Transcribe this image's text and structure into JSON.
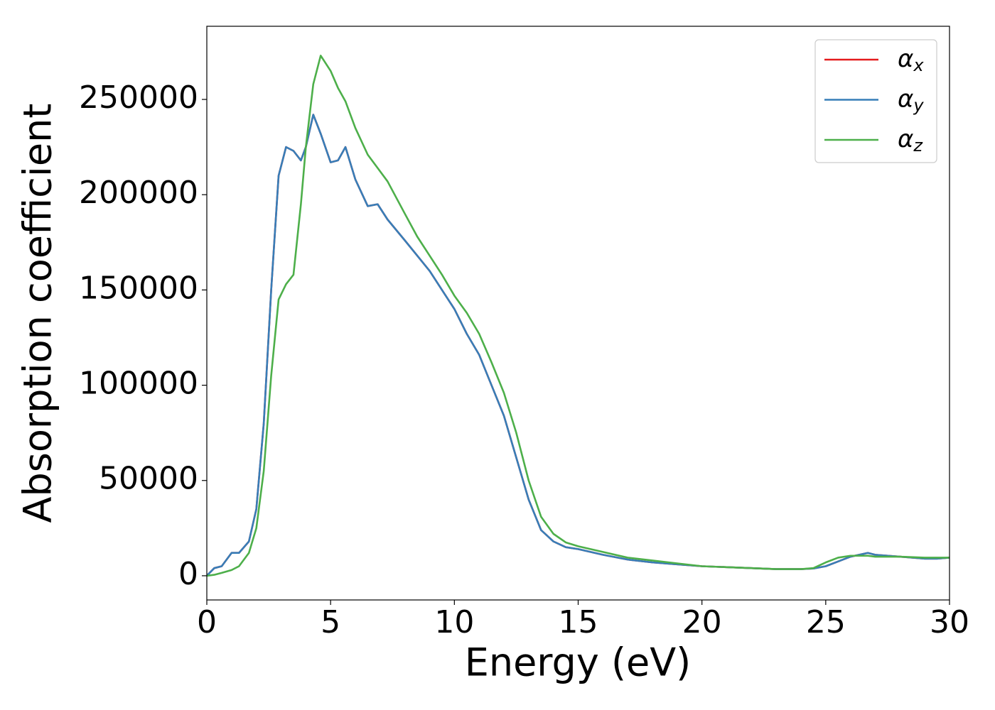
{
  "chart_data": {
    "type": "line",
    "xlabel": "Energy (eV)",
    "ylabel": "Absorption coefficient",
    "x": [
      0,
      0.3,
      0.6,
      1.0,
      1.3,
      1.7,
      2.0,
      2.3,
      2.6,
      2.9,
      3.2,
      3.5,
      3.8,
      4.0,
      4.3,
      4.6,
      5.0,
      5.3,
      5.6,
      6.0,
      6.5,
      6.9,
      7.3,
      8.0,
      8.5,
      9.0,
      9.5,
      10.0,
      10.5,
      11.0,
      11.5,
      12.0,
      12.5,
      13.0,
      13.5,
      14.0,
      14.5,
      15.0,
      16.0,
      17.0,
      18.0,
      19.0,
      20.0,
      21.0,
      22.0,
      23.0,
      24.0,
      24.5,
      25.0,
      25.5,
      26.0,
      26.7,
      27.0,
      28.0,
      29.0,
      29.5,
      30.0
    ],
    "series": [
      {
        "name": "αx",
        "color": "#e41a1c",
        "values": [
          0,
          4000,
          5000,
          12000,
          12000,
          18000,
          35000,
          80000,
          150000,
          210000,
          225000,
          223000,
          218000,
          225000,
          242000,
          232000,
          217000,
          218000,
          225000,
          208000,
          194000,
          195000,
          187000,
          176000,
          168000,
          160000,
          150000,
          140000,
          127000,
          116000,
          100000,
          84000,
          62000,
          40000,
          24000,
          18000,
          15000,
          14000,
          11000,
          8500,
          7000,
          6000,
          5000,
          4500,
          4000,
          3500,
          3500,
          3800,
          5000,
          7500,
          10000,
          12000,
          11000,
          10000,
          9000,
          9000,
          9500
        ]
      },
      {
        "name": "αy",
        "color": "#377eb8",
        "values": [
          0,
          4000,
          5000,
          12000,
          12000,
          18000,
          35000,
          80000,
          150000,
          210000,
          225000,
          223000,
          218000,
          225000,
          242000,
          232000,
          217000,
          218000,
          225000,
          208000,
          194000,
          195000,
          187000,
          176000,
          168000,
          160000,
          150000,
          140000,
          127000,
          116000,
          100000,
          84000,
          62000,
          40000,
          24000,
          18000,
          15000,
          14000,
          11000,
          8500,
          7000,
          6000,
          5000,
          4500,
          4000,
          3500,
          3500,
          3800,
          5000,
          7500,
          10000,
          12000,
          11000,
          10000,
          9000,
          9000,
          9500
        ]
      },
      {
        "name": "αz",
        "color": "#4daf4a",
        "values": [
          0,
          500,
          1500,
          3000,
          5000,
          12000,
          25000,
          55000,
          105000,
          145000,
          153000,
          158000,
          195000,
          225000,
          258000,
          273000,
          265000,
          256000,
          249000,
          235000,
          221000,
          214000,
          207000,
          190000,
          178000,
          168000,
          158000,
          147000,
          138000,
          127000,
          112000,
          96000,
          75000,
          50000,
          31000,
          22000,
          17500,
          15500,
          12500,
          9500,
          8000,
          6500,
          5000,
          4500,
          4000,
          3500,
          3500,
          4000,
          7000,
          9500,
          10500,
          10500,
          10000,
          10000,
          9500,
          9500,
          9500
        ]
      }
    ],
    "xlim": [
      0,
      30
    ],
    "xticks": [
      0,
      5,
      10,
      15,
      20,
      25,
      30
    ],
    "ylim": [
      -12700,
      288400
    ],
    "yticks": [
      0,
      50000,
      100000,
      150000,
      200000,
      250000
    ],
    "grid": false,
    "legend": "upper right"
  }
}
